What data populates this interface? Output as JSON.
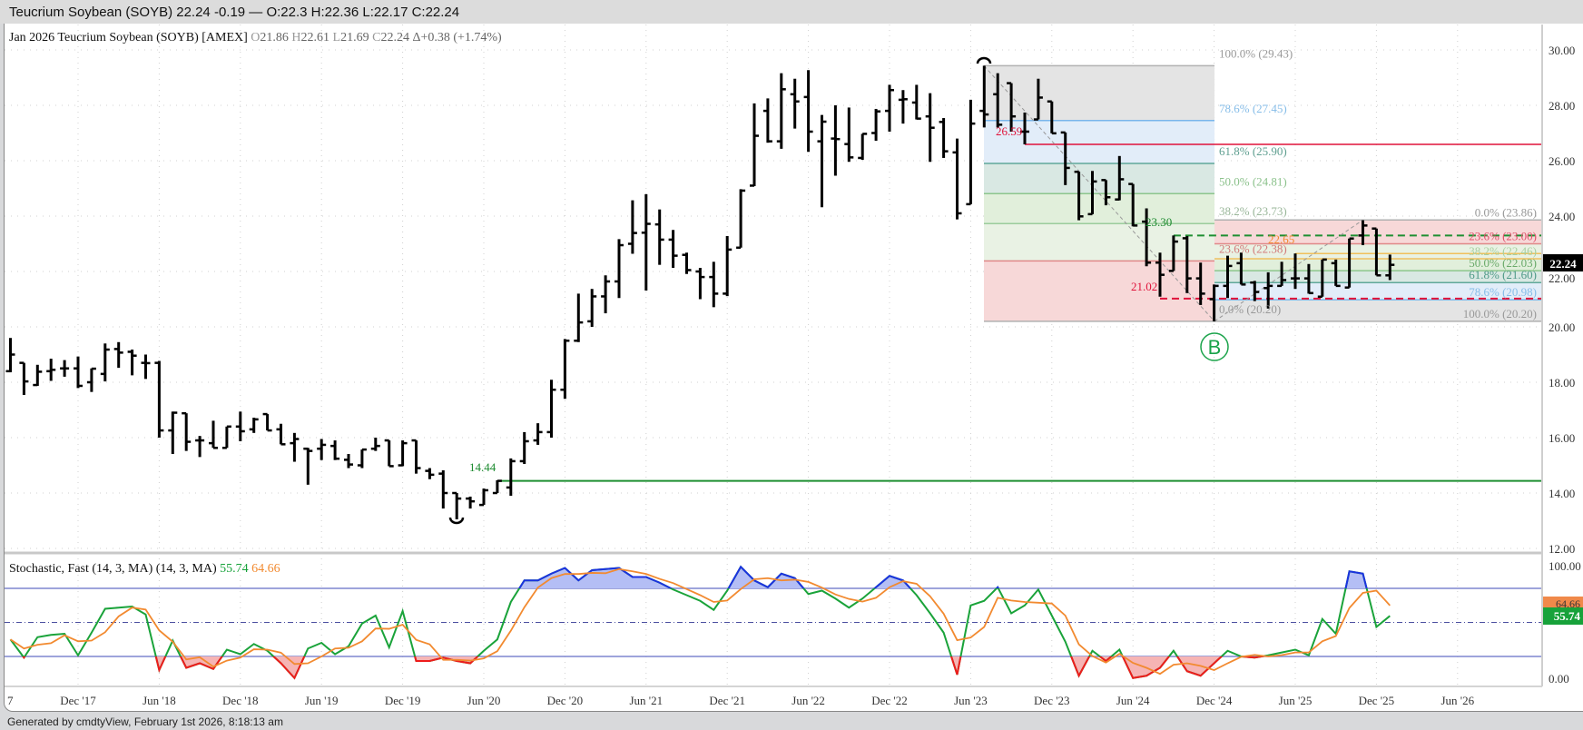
{
  "window_title": "Teucrium Soybean (SOYB) 22.24 -0.19 — O:22.3 H:22.36 L:22.17 C:22.24",
  "header": {
    "name": "Jan 2026 Teucrium Soybean (SOYB) [AMEX]",
    "o_label": "O",
    "o": "21.86",
    "h_label": "H",
    "h": "22.61",
    "l_label": "L",
    "l": "21.69",
    "c_label": "C",
    "c": "22.24",
    "change": "Δ+0.38 (+1.74%)"
  },
  "last_price_label": "22.24",
  "footer": "Generated by cmdtyView, February 1st 2026, 8:18:13 am",
  "colors": {
    "up_band": "#b4bef5",
    "down_band": "#f6b4b4",
    "k_line": "#1aa33a",
    "d_line": "#f28a30",
    "k_over": "#1b32e0",
    "k_under": "#ee1c1c"
  },
  "annotations": {
    "support_14_44": "14.44",
    "resist_26_59": "26.59",
    "level_23_30": "23.30",
    "level_21_02": "21.02",
    "level_22_65": "22.65",
    "wave_label": "B"
  },
  "fib1": {
    "from": 29.43,
    "to": 20.2,
    "labels": [
      "100.0% (29.43)",
      "78.6% (27.45)",
      "61.8% (25.90)",
      "50.0% (24.81)",
      "38.2% (23.73)",
      "23.6% (22.38)",
      "0.0% (20.20)"
    ],
    "levels": [
      29.43,
      27.45,
      25.9,
      24.81,
      23.73,
      22.38,
      20.2
    ]
  },
  "fib2": {
    "from": 20.2,
    "to": 23.86,
    "labels": [
      "0.0% (23.86)",
      "23.6% (23.00)",
      "38.2% (22.46)",
      "50.0% (22.03)",
      "61.8% (21.60)",
      "78.6% (20.98)",
      "100.0% (20.20)"
    ],
    "levels": [
      23.86,
      23.0,
      22.46,
      22.03,
      21.6,
      20.98,
      20.2
    ]
  },
  "price_axis": [
    "30.00",
    "28.00",
    "26.00",
    "24.00",
    "22.00",
    "20.00",
    "18.00",
    "16.00",
    "14.00",
    "12.00"
  ],
  "stoch_axis": {
    "top": "100.00",
    "bottom": "0.00"
  },
  "x_axis": [
    "7",
    "Dec '17",
    "Jun '18",
    "Dec '18",
    "Jun '19",
    "Dec '19",
    "Jun '20",
    "Dec '20",
    "Jun '21",
    "Dec '21",
    "Jun '22",
    "Dec '22",
    "Jun '23",
    "Dec '23",
    "Jun '24",
    "Dec '24",
    "Jun '25",
    "Dec '25",
    "Jun '26"
  ],
  "stochastic": {
    "title": "Stochastic, Fast (14, 3, MA)  (14, 3, MA)",
    "k_value": "55.74",
    "d_value": "64.66"
  },
  "chart_data": {
    "type": "ohlc",
    "interval": "monthly",
    "first_bar": "Jul 2017",
    "last_bar": "Jan 2026",
    "ylim": [
      12,
      30
    ],
    "ohlc": [
      [
        18.4,
        19.6,
        18.36,
        19.0
      ],
      [
        18.7,
        18.7,
        17.54,
        18.03
      ],
      [
        17.9,
        18.63,
        17.87,
        18.38
      ],
      [
        18.4,
        18.85,
        18.05,
        18.45
      ],
      [
        18.5,
        18.8,
        18.2,
        18.5
      ],
      [
        18.5,
        18.93,
        17.79,
        17.87
      ],
      [
        18.0,
        18.5,
        17.65,
        18.49
      ],
      [
        18.3,
        19.4,
        18.03,
        19.18
      ],
      [
        19.2,
        19.45,
        18.52,
        19.07
      ],
      [
        19.1,
        19.18,
        18.25,
        18.96
      ],
      [
        18.7,
        19.0,
        18.12,
        18.69
      ],
      [
        18.7,
        18.77,
        16.0,
        16.26
      ],
      [
        16.26,
        16.94,
        15.41,
        16.9
      ],
      [
        16.88,
        16.88,
        15.52,
        15.85
      ],
      [
        15.9,
        16.06,
        15.3,
        15.9
      ],
      [
        15.8,
        16.61,
        15.63,
        15.63
      ],
      [
        15.63,
        16.4,
        15.63,
        16.4
      ],
      [
        16.4,
        16.94,
        15.87,
        16.23
      ],
      [
        16.3,
        16.72,
        16.17,
        16.66
      ],
      [
        16.85,
        16.85,
        16.26,
        16.26
      ],
      [
        16.3,
        16.5,
        15.76,
        15.76
      ],
      [
        15.8,
        16.17,
        15.13,
        15.95
      ],
      [
        15.6,
        15.63,
        14.3,
        15.52
      ],
      [
        15.6,
        15.95,
        15.19,
        15.74
      ],
      [
        15.7,
        15.9,
        15.19,
        15.24
      ],
      [
        15.2,
        15.41,
        14.9,
        15.03
      ],
      [
        15.0,
        15.57,
        14.9,
        15.57
      ],
      [
        15.6,
        16.0,
        15.52,
        15.7
      ],
      [
        15.9,
        15.9,
        14.97,
        14.97
      ],
      [
        15.0,
        15.9,
        14.97,
        15.8
      ],
      [
        15.9,
        15.9,
        14.7,
        14.9
      ],
      [
        14.8,
        14.9,
        14.5,
        14.66
      ],
      [
        14.7,
        14.82,
        13.44,
        14.0
      ],
      [
        14.0,
        14.0,
        13.05,
        13.8
      ],
      [
        13.8,
        13.87,
        13.44,
        13.7
      ],
      [
        13.57,
        14.16,
        13.57,
        14.1
      ],
      [
        14.0,
        14.46,
        14.0,
        14.44
      ],
      [
        14.2,
        15.25,
        13.9,
        15.15
      ],
      [
        15.15,
        16.2,
        15.05,
        15.87
      ],
      [
        15.9,
        16.52,
        15.74,
        16.2
      ],
      [
        16.2,
        18.09,
        16.0,
        17.73
      ],
      [
        17.73,
        19.56,
        17.4,
        19.5
      ],
      [
        19.5,
        21.2,
        19.45,
        20.16
      ],
      [
        20.2,
        21.37,
        20.0,
        21.1
      ],
      [
        21.1,
        21.86,
        20.49,
        21.64
      ],
      [
        21.64,
        23.17,
        21.04,
        22.95
      ],
      [
        23.0,
        24.57,
        22.64,
        23.39
      ],
      [
        23.4,
        24.79,
        21.31,
        23.72
      ],
      [
        23.7,
        24.24,
        22.24,
        23.15
      ],
      [
        23.15,
        23.5,
        22.13,
        22.57
      ],
      [
        22.6,
        22.68,
        21.91,
        22.05
      ],
      [
        22.0,
        22.13,
        21.0,
        21.8
      ],
      [
        21.8,
        22.35,
        20.71,
        21.2
      ],
      [
        21.2,
        23.28,
        21.11,
        22.79
      ],
      [
        22.86,
        24.97,
        22.86,
        24.92
      ],
      [
        25.1,
        28.07,
        25.08,
        26.9
      ],
      [
        27.8,
        28.25,
        26.65,
        26.7
      ],
      [
        26.7,
        29.16,
        26.43,
        28.58
      ],
      [
        28.4,
        28.96,
        27.16,
        28.14
      ],
      [
        28.3,
        29.27,
        26.32,
        27.05
      ],
      [
        26.7,
        27.65,
        24.32,
        27.41
      ],
      [
        26.8,
        28.0,
        25.46,
        26.78
      ],
      [
        26.6,
        27.92,
        25.96,
        26.12
      ],
      [
        26.1,
        26.97,
        26.03,
        26.97
      ],
      [
        27.0,
        27.87,
        26.72,
        27.78
      ],
      [
        27.8,
        28.74,
        27.05,
        28.55
      ],
      [
        28.2,
        28.55,
        27.34,
        28.22
      ],
      [
        28.1,
        28.74,
        27.49,
        27.52
      ],
      [
        27.6,
        28.44,
        25.96,
        27.19
      ],
      [
        27.4,
        27.54,
        26.1,
        26.34
      ],
      [
        26.3,
        26.8,
        23.88,
        24.1
      ],
      [
        24.43,
        28.2,
        24.43,
        27.34
      ],
      [
        27.8,
        29.43,
        27.2,
        27.67
      ],
      [
        28.4,
        29.16,
        27.2,
        27.3
      ],
      [
        28.8,
        28.8,
        27.05,
        27.6
      ],
      [
        27.05,
        27.74,
        26.59,
        27.05
      ],
      [
        27.49,
        28.96,
        27.49,
        28.28
      ],
      [
        28.14,
        28.14,
        26.99,
        26.99
      ],
      [
        27.02,
        27.02,
        25.12,
        25.74
      ],
      [
        25.6,
        25.6,
        23.85,
        23.99
      ],
      [
        24.07,
        25.63,
        24.07,
        25.25
      ],
      [
        25.3,
        25.3,
        24.39,
        24.68
      ],
      [
        24.6,
        26.17,
        24.57,
        25.33
      ],
      [
        25.16,
        25.16,
        23.63,
        23.66
      ],
      [
        23.8,
        24.28,
        22.19,
        22.32
      ],
      [
        22.32,
        22.68,
        21.09,
        21.88
      ],
      [
        22.02,
        23.3,
        22.02,
        23.08
      ],
      [
        23.2,
        23.28,
        21.22,
        21.75
      ],
      [
        21.75,
        22.32,
        20.79,
        21.2
      ],
      [
        21.0,
        21.53,
        20.2,
        21.48
      ],
      [
        21.48,
        22.57,
        21.04,
        22.2
      ],
      [
        22.3,
        22.68,
        21.53,
        21.53
      ],
      [
        21.6,
        21.66,
        20.93,
        21.26
      ],
      [
        21.4,
        21.97,
        20.66,
        21.48
      ],
      [
        21.48,
        22.35,
        21.48,
        21.69
      ],
      [
        21.75,
        22.65,
        21.37,
        21.75
      ],
      [
        21.75,
        22.27,
        21.2,
        21.22
      ],
      [
        21.09,
        22.43,
        21.09,
        22.43
      ],
      [
        22.3,
        22.43,
        21.48,
        21.48
      ],
      [
        21.42,
        23.19,
        21.42,
        23.19
      ],
      [
        23.3,
        23.85,
        22.95,
        23.66
      ],
      [
        23.55,
        23.55,
        21.86,
        21.86
      ],
      [
        21.86,
        22.61,
        21.69,
        22.24
      ]
    ],
    "stoch_k": [
      35,
      19,
      37,
      39,
      40,
      21,
      41,
      62,
      63,
      64,
      57,
      8,
      34,
      10,
      14,
      9,
      26,
      22,
      31,
      25,
      14,
      1,
      27,
      32,
      22,
      29,
      49,
      56,
      28,
      60,
      16,
      16,
      19,
      16,
      14,
      25,
      35,
      68,
      87,
      87,
      93,
      98,
      87,
      96,
      97,
      98,
      90,
      90,
      85,
      79,
      74,
      69,
      61,
      78,
      99,
      87,
      81,
      93,
      89,
      75,
      78,
      71,
      63,
      71,
      81,
      91,
      87,
      74,
      58,
      41,
      4,
      65,
      69,
      81,
      58,
      65,
      79,
      56,
      33,
      3,
      25,
      16,
      26,
      1,
      3,
      10,
      25,
      7,
      3,
      14,
      25,
      20,
      19,
      21,
      23.5,
      26,
      21,
      53,
      40,
      95,
      93,
      46,
      55.74
    ],
    "stoch_d_period": 3,
    "stoch_levels": {
      "overbought": 80,
      "mid": 50,
      "oversold": 20
    },
    "stoch_ylim": [
      0,
      100
    ]
  }
}
